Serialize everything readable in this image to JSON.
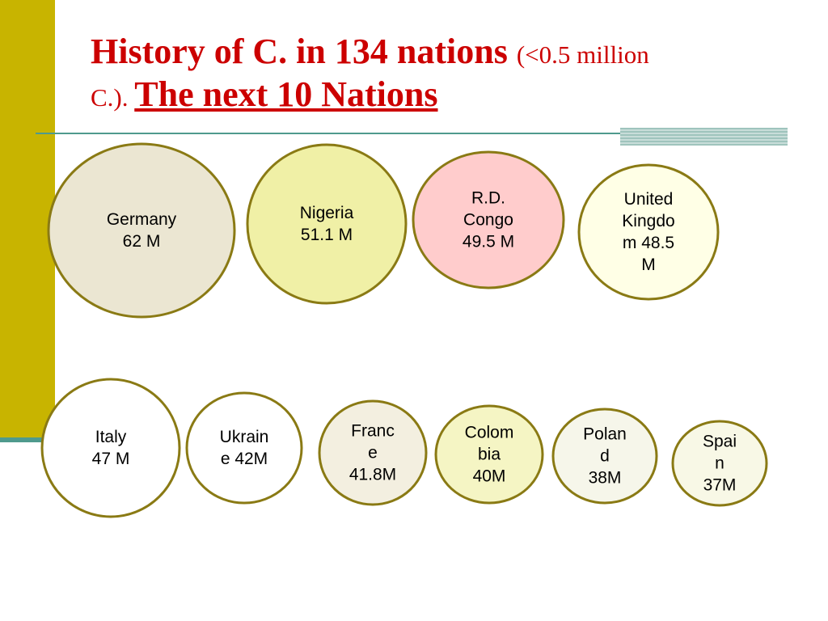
{
  "slide": {
    "title_main": "History of C. in 134 nations ",
    "title_paren": "(<0.5 million C.)",
    "title_dot": ". ",
    "title_sub": "The next 10 Nations"
  },
  "colors": {
    "accent_bar": "#c8b400",
    "rule": "#4f9a8d",
    "title_text": "#cc0000",
    "bubble_stroke": "#8a7a14"
  },
  "chart_data": {
    "type": "bubble",
    "unit": "M",
    "series": [
      {
        "label": "Germany\n62 M",
        "country": "Germany",
        "value": 62,
        "fill": "#ebe6d2"
      },
      {
        "label": "Nigeria\n51.1 M",
        "country": "Nigeria",
        "value": 51.1,
        "fill": "#f0f0a6"
      },
      {
        "label": "R.D.\nCongo\n49.5 M",
        "country": "R.D. Congo",
        "value": 49.5,
        "fill": "#ffcccc"
      },
      {
        "label": "United\nKingdo\nm 48.5\nM",
        "country": "United Kingdom",
        "value": 48.5,
        "fill": "#ffffe6"
      },
      {
        "label": "Italy\n47 M",
        "country": "Italy",
        "value": 47,
        "fill": "#ffffff"
      },
      {
        "label": "Ukrain\ne 42M",
        "country": "Ukraine",
        "value": 42,
        "fill": "#ffffff"
      },
      {
        "label": "Franc\ne\n41.8M",
        "country": "France",
        "value": 41.8,
        "fill": "#f3efe0"
      },
      {
        "label": "Colom\nbia\n40M",
        "country": "Colombia",
        "value": 40,
        "fill": "#f5f5c4"
      },
      {
        "label": "Polan\nd\n38M",
        "country": "Poland",
        "value": 38,
        "fill": "#f6f6ea"
      },
      {
        "label": "Spai\nn\n37M",
        "country": "Spain",
        "value": 37,
        "fill": "#f8f8e6"
      }
    ]
  }
}
